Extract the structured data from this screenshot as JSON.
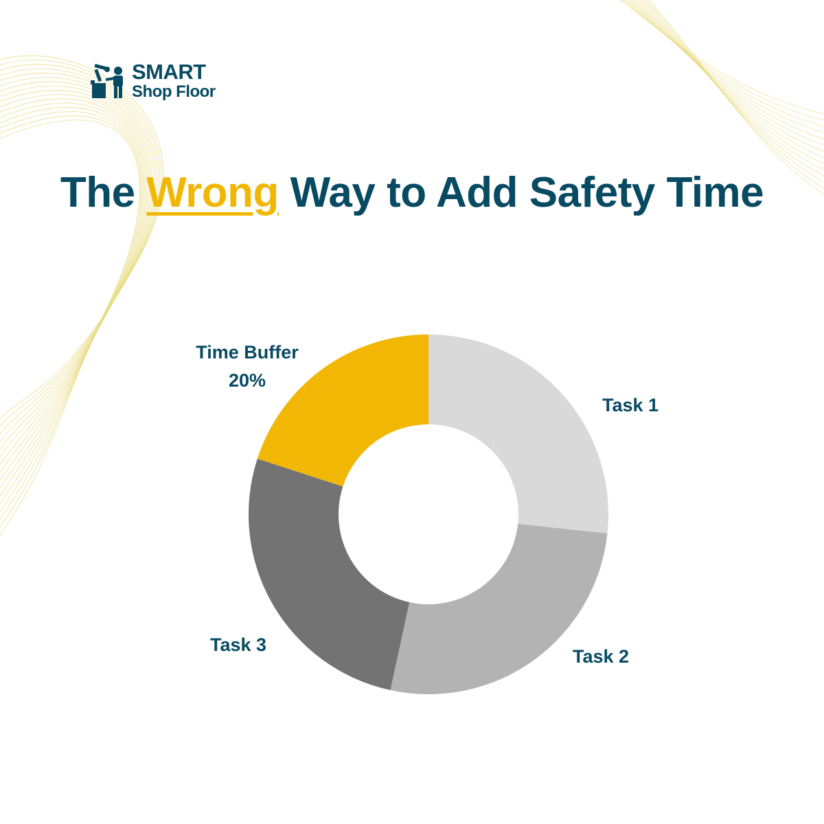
{
  "brand": {
    "line1": "SMART",
    "line2": "Shop Floor",
    "icon": "factory-worker-icon",
    "color": "#074a62"
  },
  "title": {
    "before": "The ",
    "highlight": "Wrong",
    "after": " Way to Add Safety Time",
    "color": "#074a62",
    "highlight_color": "#f2b705"
  },
  "decoration": {
    "line_color": "#f0d36a",
    "line_color_alt": "#dfe08a"
  },
  "chart_data": {
    "type": "pie",
    "donut": true,
    "start_angle_deg": 0,
    "direction": "clockwise",
    "slices": [
      {
        "label": "Task 1",
        "value_label": "",
        "value": 26.7,
        "color": "#d9d9d9"
      },
      {
        "label": "Task 2",
        "value_label": "",
        "value": 26.7,
        "color": "#b3b3b3"
      },
      {
        "label": "Task 3",
        "value_label": "",
        "value": 26.6,
        "color": "#737373"
      },
      {
        "label": "Time Buffer",
        "value_label": "20%",
        "value": 20,
        "color": "#f2b705"
      }
    ],
    "label_color": "#074a62",
    "legend": "none"
  }
}
